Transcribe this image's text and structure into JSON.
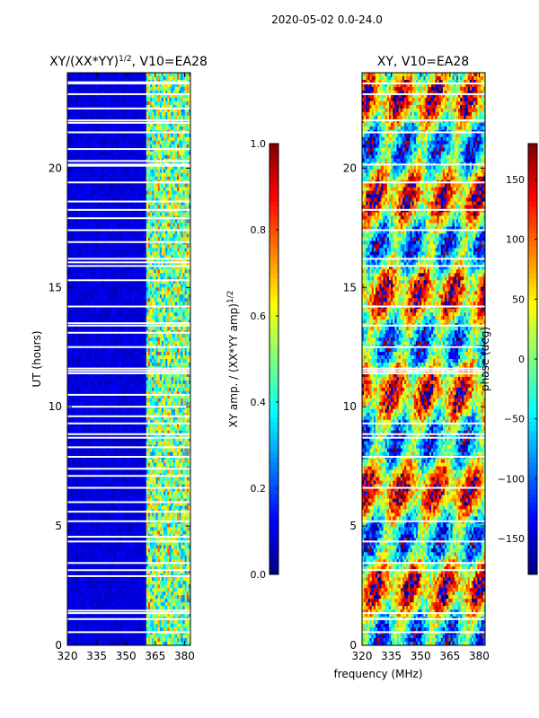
{
  "figure": {
    "suptitle": "2020-05-02 0.0-24.0",
    "shared_xlabel": "frequency (MHz)"
  },
  "chart_data": [
    {
      "type": "heatmap",
      "title_main": "XY/(XX*YY)",
      "title_exp": "1/2",
      "title_suffix": ", V10=EA28",
      "xlabel": "",
      "ylabel": "UT (hours)",
      "xlim": [
        320,
        383
      ],
      "ylim": [
        0,
        24
      ],
      "xticks": [
        320,
        335,
        350,
        365,
        380
      ],
      "yticks": [
        0,
        5,
        10,
        15,
        20
      ],
      "colorbar": {
        "label_main": "XY amp. / (XX*YY amp)",
        "label_exp": "1/2",
        "range": [
          0.0,
          1.0
        ],
        "ticks": [
          "0.0",
          "0.2",
          "0.4",
          "0.6",
          "0.8",
          "1.0"
        ],
        "tick_values": [
          0.0,
          0.2,
          0.4,
          0.6,
          0.8,
          1.0
        ],
        "colormap": "jet"
      },
      "bright_band_mhz": [
        360,
        383
      ],
      "flagged_ut_hours": [
        0.55,
        1.1,
        1.35,
        1.45,
        2.9,
        3.15,
        3.45,
        4.35,
        4.55,
        5.2,
        5.6,
        6.0,
        6.6,
        7.1,
        7.4,
        7.9,
        8.3,
        8.7,
        8.85,
        9.3,
        9.6,
        10.0,
        10.5,
        11.4,
        11.5,
        11.6,
        12.5,
        13.1,
        13.4,
        13.5,
        14.2,
        15.3,
        15.9,
        16.05,
        16.2,
        16.9,
        17.4,
        17.9,
        18.25,
        18.6,
        19.4,
        20.1,
        20.15,
        20.3,
        20.8,
        21.5,
        21.9,
        22.0,
        22.5,
        23.1,
        23.55,
        23.6
      ]
    },
    {
      "type": "heatmap",
      "title_main": "XY, V10=EA28",
      "xlabel": "frequency (MHz)",
      "ylabel": "",
      "xlim": [
        320,
        383
      ],
      "ylim": [
        0,
        24
      ],
      "xticks": [
        320,
        335,
        350,
        365,
        380
      ],
      "yticks": [
        0,
        5,
        10,
        15,
        20
      ],
      "colorbar": {
        "label": "phase (deg)",
        "range": [
          -180,
          180
        ],
        "ticks": [
          "−150",
          "−100",
          "−50",
          "0",
          "50",
          "100",
          "150"
        ],
        "tick_values": [
          -150,
          -100,
          -50,
          0,
          50,
          100,
          150
        ],
        "colormap": "jet"
      },
      "flagged_ut_hours": [
        0.55,
        1.1,
        1.35,
        3.15,
        3.45,
        4.35,
        5.2,
        6.6,
        7.9,
        8.7,
        8.85,
        9.3,
        11.4,
        11.5,
        11.6,
        12.5,
        13.4,
        14.2,
        15.9,
        16.2,
        17.4,
        18.25,
        19.4,
        20.15,
        21.5,
        22.0,
        23.1,
        23.55
      ]
    }
  ]
}
